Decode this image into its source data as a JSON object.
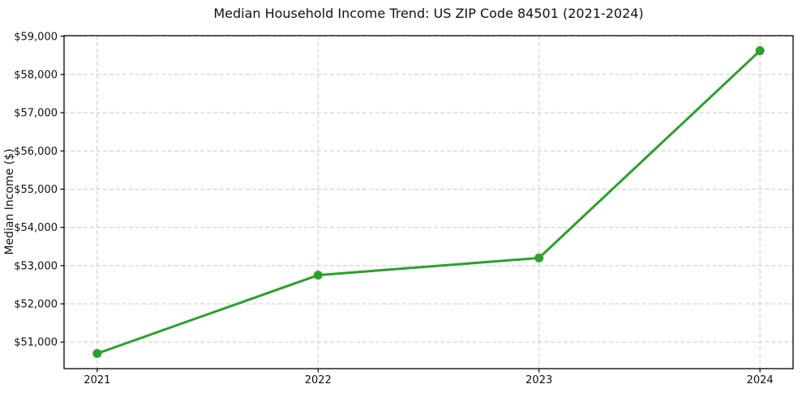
{
  "page": {
    "background": "#ffffff",
    "text_color": "#111111"
  },
  "chart_data": {
    "type": "line",
    "title": "Median Household Income Trend: US ZIP Code 84501 (2021-2024)",
    "xlabel": "",
    "ylabel": "Median Income ($)",
    "categories": [
      "2021",
      "2022",
      "2023",
      "2024"
    ],
    "x": [
      2021,
      2022,
      2023,
      2024
    ],
    "series": [
      {
        "name": "median-household-income",
        "values": [
          50700,
          52750,
          53200,
          58620
        ],
        "color": "#2ca02c",
        "marker": "circle"
      }
    ],
    "yticks": [
      51000,
      52000,
      53000,
      54000,
      55000,
      56000,
      57000,
      58000,
      59000
    ],
    "ytick_labels": [
      "$51,000",
      "$52,000",
      "$53,000",
      "$54,000",
      "$55,000",
      "$56,000",
      "$57,000",
      "$58,000",
      "$59,000"
    ],
    "xlim": [
      2020.85,
      2024.15
    ],
    "ylim": [
      50304,
      59016
    ],
    "grid": true,
    "grid_color": "#c9c9c9",
    "axis_color": "#000000",
    "legend": false,
    "line_width": 3,
    "marker_radius": 5.5
  }
}
